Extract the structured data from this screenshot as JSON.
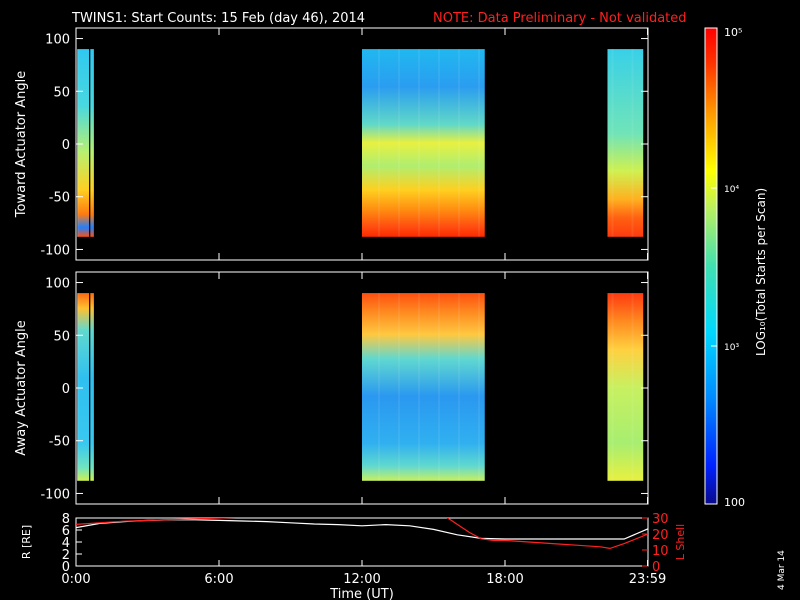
{
  "header": {
    "title": "TWINS1: Start Counts: 15 Feb (day  46), 2014",
    "note": "NOTE: Data Preliminary - Not validated"
  },
  "side_date": "4 Mar 14",
  "chart_data": [
    {
      "type": "heatmap",
      "id": "toward",
      "ylabel": "Toward Actuator Angle",
      "ylim": [
        -110,
        110
      ],
      "yticks": [
        "100",
        "50",
        "0",
        "-50",
        "-100"
      ],
      "ytick_values": [
        100,
        50,
        0,
        -50,
        -100
      ],
      "xlim": [
        0,
        24
      ],
      "data_blocks": [
        {
          "x_start": 0.05,
          "x_end": 0.55,
          "y_start": -88,
          "y_end": 90
        },
        {
          "x_start": 0.6,
          "x_end": 0.75,
          "y_start": -88,
          "y_end": 90
        },
        {
          "x_start": 12.0,
          "x_end": 17.15,
          "y_start": -88,
          "y_end": 90
        },
        {
          "x_start": 22.3,
          "x_end": 23.8,
          "y_start": -88,
          "y_end": 90
        }
      ],
      "grid": false
    },
    {
      "type": "heatmap",
      "id": "away",
      "ylabel": "Away Actuator Angle",
      "ylim": [
        -110,
        110
      ],
      "yticks": [
        "100",
        "50",
        "0",
        "-50",
        "-100"
      ],
      "ytick_values": [
        100,
        50,
        0,
        -50,
        -100
      ],
      "xlim": [
        0,
        24
      ],
      "data_blocks": [
        {
          "x_start": 0.05,
          "x_end": 0.55,
          "y_start": -88,
          "y_end": 90
        },
        {
          "x_start": 0.6,
          "x_end": 0.75,
          "y_start": -88,
          "y_end": 90
        },
        {
          "x_start": 12.0,
          "x_end": 17.15,
          "y_start": -88,
          "y_end": 90
        },
        {
          "x_start": 22.3,
          "x_end": 23.8,
          "y_start": -88,
          "y_end": 90
        }
      ],
      "grid": false
    },
    {
      "type": "line",
      "id": "orbit",
      "xlabel": "Time (UT)",
      "xlim": [
        0,
        24
      ],
      "xticks": [
        "0:00",
        "6:00",
        "12:00",
        "18:00",
        "23:59"
      ],
      "xtick_values": [
        0,
        6,
        12,
        18,
        23.98
      ],
      "ylabel_left": "R [RE]",
      "ylim_left": [
        0,
        8
      ],
      "yticks_left": [
        "8",
        "6",
        "4",
        "2",
        "0"
      ],
      "ytick_values_left": [
        8,
        6,
        4,
        2,
        0
      ],
      "ylabel_right": "L Shell",
      "ylim_right": [
        0,
        30
      ],
      "yticks_right": [
        "30",
        "20",
        "10",
        "0"
      ],
      "ytick_values_right": [
        30,
        20,
        10,
        0
      ],
      "series": [
        {
          "axis": "left",
          "color": "#ffffff",
          "x": [
            0,
            1,
            2,
            3,
            4,
            5,
            6,
            7,
            8,
            9,
            10,
            11,
            12,
            13,
            14,
            15,
            16,
            17,
            18,
            19,
            20,
            21,
            22,
            23,
            24
          ],
          "y": [
            6.4,
            7.1,
            7.4,
            7.6,
            7.7,
            7.7,
            7.6,
            7.5,
            7.4,
            7.2,
            7.0,
            6.9,
            6.7,
            6.9,
            6.7,
            6.1,
            5.2,
            4.6,
            4.5,
            4.5,
            4.5,
            4.5,
            4.5,
            4.5,
            6.2
          ]
        },
        {
          "axis": "right",
          "color": "#ff2020",
          "x": [
            0,
            2,
            4,
            6,
            8,
            10,
            15.3,
            16,
            16.5,
            17,
            17.5,
            18,
            19,
            20,
            21,
            22,
            22.4,
            23,
            24
          ],
          "y": [
            26,
            28,
            29,
            30,
            31,
            33,
            33,
            26,
            21,
            17,
            16,
            16,
            15,
            14,
            13,
            12,
            11,
            14,
            20
          ]
        }
      ]
    }
  ],
  "colorbar": {
    "label": "LOG₁₀(Total Starts per Scan)",
    "scale": "log",
    "range": [
      100,
      100000
    ],
    "ticks": [
      "10⁵",
      "10⁴",
      "10³",
      "100"
    ],
    "tick_values": [
      100000,
      10000,
      1000,
      100
    ]
  }
}
